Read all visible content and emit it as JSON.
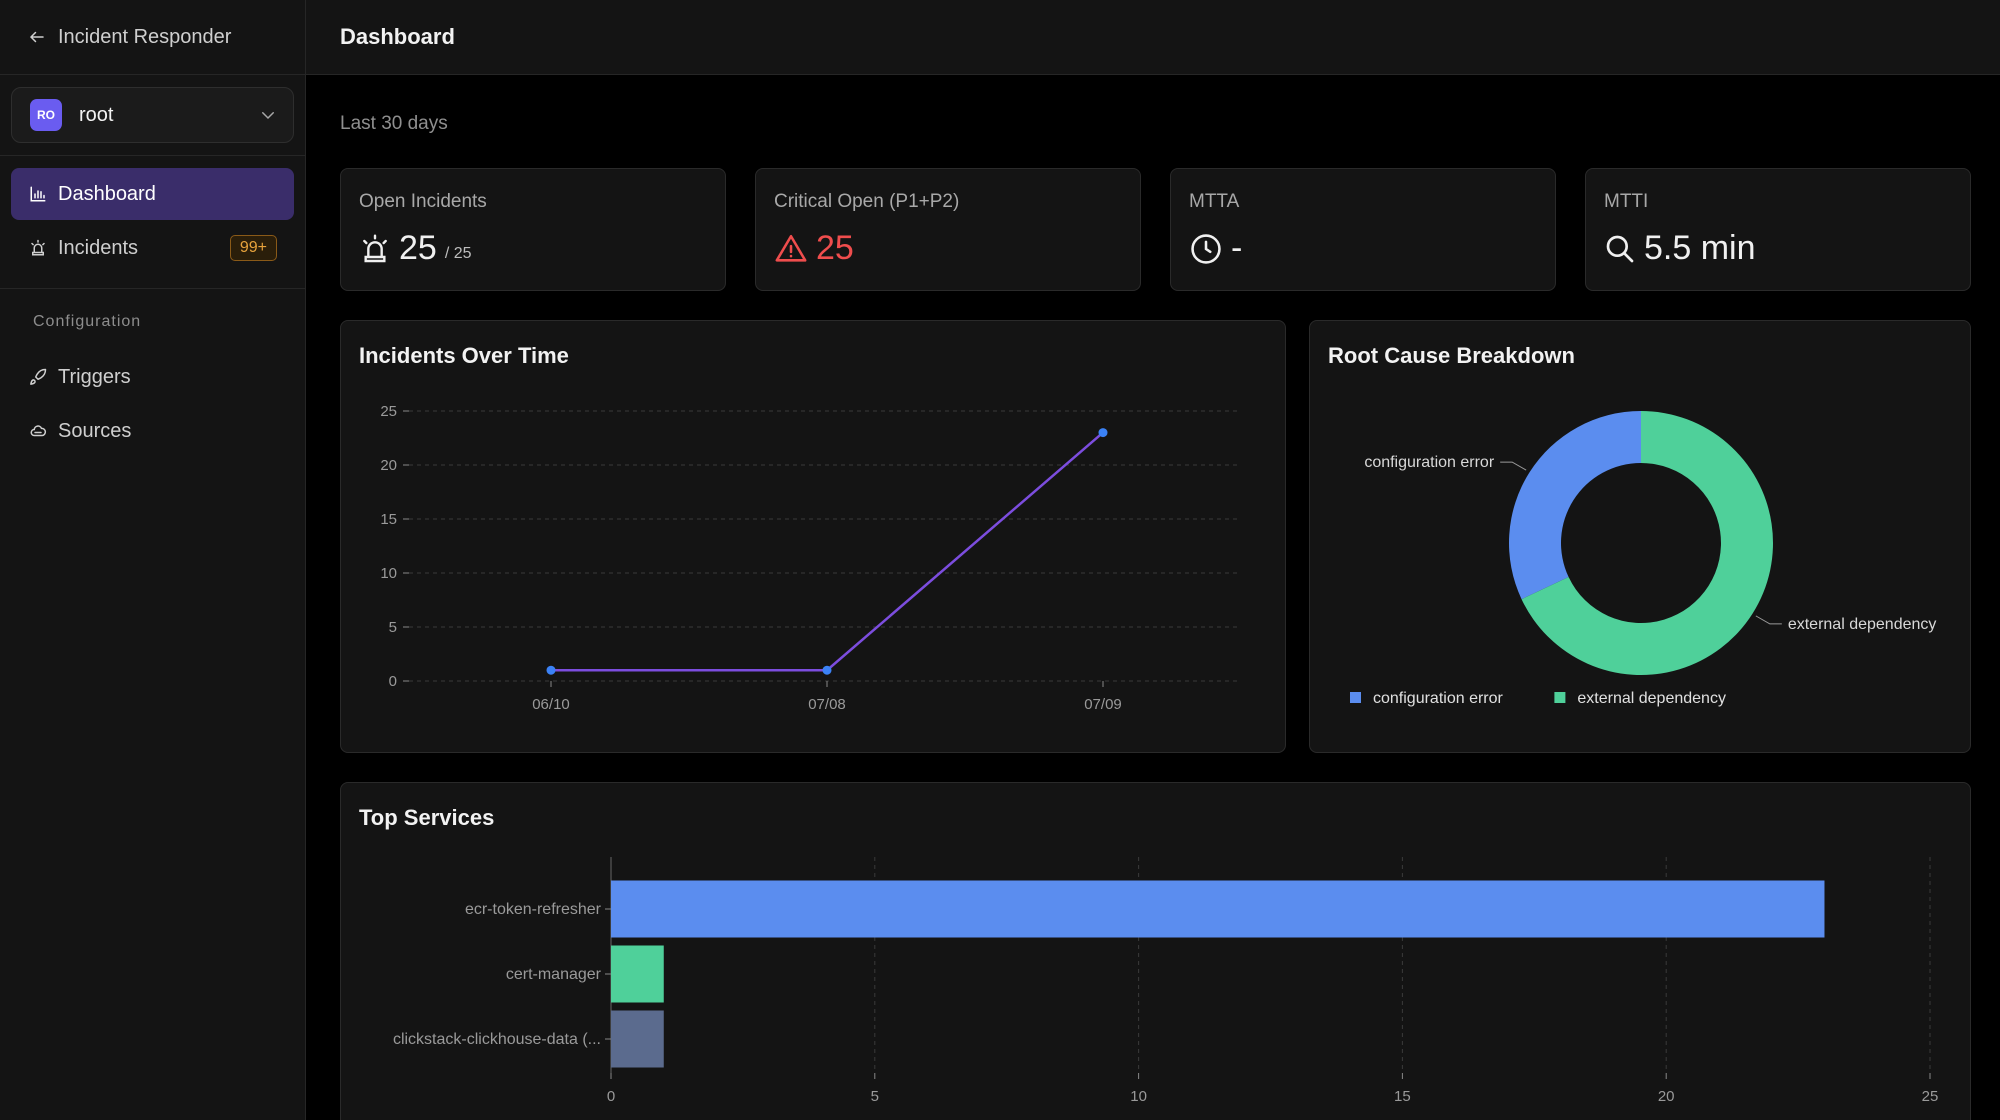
{
  "sidebar": {
    "back_label": "Incident Responder",
    "org": {
      "initials": "RO",
      "name": "root"
    },
    "nav": [
      {
        "label": "Dashboard",
        "icon": "bar-chart-icon",
        "active": true
      },
      {
        "label": "Incidents",
        "icon": "siren-icon",
        "badge": "99+"
      }
    ],
    "section_title": "Configuration",
    "config_nav": [
      {
        "label": "Triggers",
        "icon": "rocket-icon"
      },
      {
        "label": "Sources",
        "icon": "cloud-icon"
      }
    ]
  },
  "header": {
    "title": "Dashboard"
  },
  "period": "Last 30 days",
  "kpis": [
    {
      "label": "Open Incidents",
      "value": "25",
      "sub": "/ 25",
      "icon": "siren-icon"
    },
    {
      "label": "Critical Open (P1+P2)",
      "value": "25",
      "icon": "warning-icon",
      "color": "#ef4d4d"
    },
    {
      "label": "MTTA",
      "value": "-",
      "icon": "clock-icon"
    },
    {
      "label": "MTTI",
      "value": "5.5 min",
      "icon": "search-icon"
    }
  ],
  "incidents_chart": {
    "title": "Incidents Over Time",
    "chart_data": {
      "type": "line",
      "x": [
        "06/10",
        "07/08",
        "07/09"
      ],
      "values": [
        1,
        1,
        23
      ],
      "ylim": [
        0,
        25
      ],
      "yticks": [
        0,
        5,
        10,
        15,
        20,
        25
      ],
      "grid": true,
      "color": "#7c4dde"
    }
  },
  "root_cause_chart": {
    "title": "Root Cause Breakdown",
    "chart_data": {
      "type": "pie",
      "labels": [
        "configuration error",
        "external dependency"
      ],
      "values": [
        8,
        17
      ],
      "colors": [
        "#5b8def",
        "#4fd09a"
      ],
      "legend": "bottom"
    }
  },
  "top_services_chart": {
    "title": "Top Services",
    "chart_data": {
      "type": "bar",
      "orientation": "horizontal",
      "categories": [
        "ecr-token-refresher",
        "cert-manager",
        "clickstack-clickhouse-data (..."
      ],
      "values": [
        23,
        1,
        1
      ],
      "colors": [
        "#5b8def",
        "#4fd09a",
        "#5b6b8e"
      ],
      "xlim": [
        0,
        25
      ],
      "xticks": [
        0,
        5,
        10,
        15,
        20,
        25
      ]
    }
  }
}
